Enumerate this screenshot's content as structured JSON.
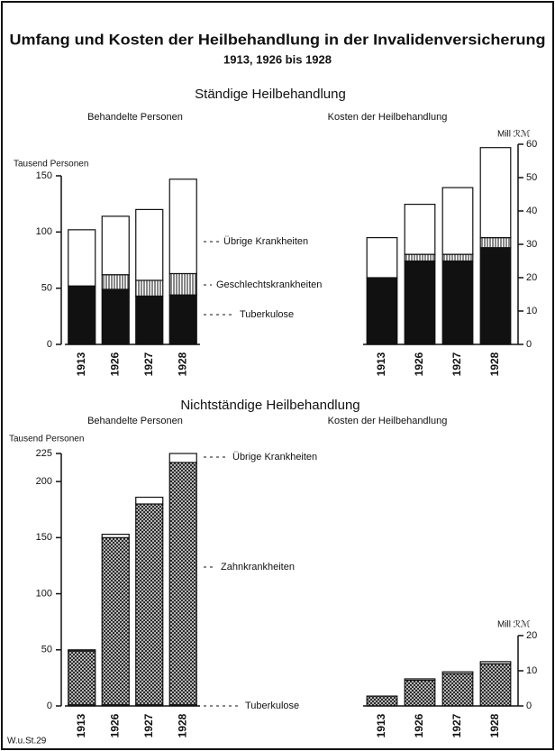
{
  "title": "Umfang und Kosten der Heilbehandlung in der Invalidenversicherung",
  "subtitle": "1913, 1926 bis 1928",
  "sections": [
    "Ständige Heilbehandlung",
    "Nichtständige Heilbehandlung"
  ],
  "footer": "W.u.St.29",
  "chart_data": [
    {
      "type": "stacked_bar",
      "title": "Behandelte Personen",
      "ylabel": "Tausend Personen",
      "axis_side": "left",
      "categories": [
        "1913",
        "1926",
        "1927",
        "1928"
      ],
      "ylim": [
        0,
        150
      ],
      "yticks": [
        0,
        50,
        100,
        150
      ],
      "series": [
        {
          "name": "Tuberkulose",
          "color": "#111111",
          "pattern": "solid",
          "values": [
            52,
            49,
            43,
            44
          ]
        },
        {
          "name": "Geschlechtskrankheiten",
          "color": "#111111",
          "pattern": "vertical",
          "values": [
            0,
            13,
            14,
            19
          ]
        },
        {
          "name": "Übrige Krankheiten",
          "color": "#111111",
          "pattern": "none",
          "values": [
            50,
            52,
            63,
            84
          ]
        }
      ]
    },
    {
      "type": "stacked_bar",
      "title": "Kosten der Heilbehandlung",
      "ylabel": "Mill ℛℳ",
      "axis_side": "right",
      "categories": [
        "1913",
        "1926",
        "1927",
        "1928"
      ],
      "ylim": [
        0,
        60
      ],
      "yticks": [
        0,
        10,
        20,
        30,
        40,
        50,
        60
      ],
      "series": [
        {
          "color": "#111111",
          "pattern": "solid",
          "values": [
            20,
            25,
            25,
            29
          ]
        },
        {
          "color": "#111111",
          "pattern": "vertical",
          "values": [
            0,
            2,
            2,
            3
          ]
        },
        {
          "color": "#111111",
          "pattern": "none",
          "values": [
            12,
            15,
            20,
            27
          ]
        }
      ]
    },
    {
      "type": "stacked_bar",
      "title": "Behandelte Personen",
      "ylabel": "Tausend Personen",
      "axis_side": "left",
      "categories": [
        "1913",
        "1926",
        "1927",
        "1928"
      ],
      "ylim": [
        0,
        225
      ],
      "yticks": [
        0,
        50,
        100,
        150,
        200,
        225
      ],
      "series": [
        {
          "name": "Tuberkulose",
          "color": "#111111",
          "pattern": "solid",
          "values": [
            1,
            1,
            1,
            1
          ]
        },
        {
          "name": "Zahnkrankheiten",
          "color": "#111111",
          "pattern": "cross",
          "values": [
            48,
            149,
            179,
            216
          ]
        },
        {
          "name": "Übrige Krankheiten",
          "color": "#111111",
          "pattern": "none",
          "values": [
            1,
            3,
            6,
            8
          ]
        }
      ]
    },
    {
      "type": "stacked_bar",
      "title": "Kosten der Heilbehandlung",
      "ylabel": "Mill ℛℳ",
      "axis_side": "right",
      "categories": [
        "1913",
        "1926",
        "1927",
        "1928"
      ],
      "ylim": [
        0,
        20
      ],
      "yticks": [
        0,
        10,
        20
      ],
      "series": [
        {
          "color": "#111111",
          "pattern": "cross",
          "values": [
            2.8,
            7.3,
            9.2,
            12
          ]
        },
        {
          "color": "#111111",
          "pattern": "none",
          "values": [
            0,
            0.4,
            0.5,
            0.6
          ]
        }
      ]
    }
  ]
}
